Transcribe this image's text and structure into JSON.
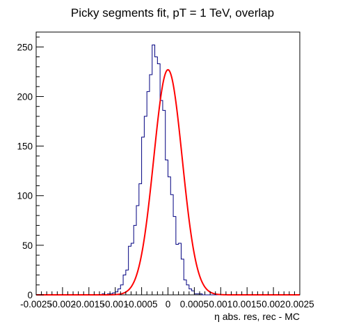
{
  "chart_data": {
    "type": "histogram",
    "title": "Picky segments fit, pT = 1 TeV, overlap",
    "xlabel": "η abs. res, rec - MC",
    "ylabel": "",
    "xlim": [
      -0.0025,
      0.0025
    ],
    "ylim": [
      0,
      265
    ],
    "x_ticks": [
      -0.0025,
      -0.002,
      -0.0015,
      -0.001,
      -0.0005,
      0,
      0.0005,
      0.001,
      0.0015,
      0.002,
      0.0025
    ],
    "x_tick_labels": [
      "-0.0025",
      "-0.002",
      "-0.0015",
      "-0.001",
      "-0.0005",
      "0",
      "0.0005",
      "0.001",
      "0.0015",
      "0.002",
      "0.0025"
    ],
    "y_ticks": [
      0,
      50,
      100,
      150,
      200,
      250
    ],
    "y_tick_labels": [
      "0",
      "50",
      "100",
      "150",
      "200",
      "250"
    ],
    "bin_width": 5e-05,
    "bin_start": -0.0025,
    "series": [
      {
        "kind": "histogram",
        "color": "#000080",
        "values": [
          0,
          0,
          0,
          0,
          0,
          0,
          0,
          0,
          0,
          0,
          0,
          0,
          0,
          0,
          0,
          0,
          0,
          0,
          0,
          0,
          0,
          0,
          0,
          0,
          0,
          1,
          0,
          1,
          1,
          2,
          3,
          6,
          10,
          20,
          25,
          49,
          52,
          70,
          90,
          112,
          159,
          180,
          205,
          222,
          252,
          240,
          233,
          196,
          186,
          136,
          119,
          101,
          79,
          51,
          52,
          36,
          15,
          10,
          6,
          4,
          1,
          1,
          1,
          0,
          0,
          0,
          0,
          0,
          0,
          0,
          0,
          0,
          0,
          0,
          0,
          0,
          0,
          0,
          0,
          0,
          0,
          0,
          0,
          0,
          0,
          0,
          0,
          0,
          0,
          0,
          0,
          0,
          0,
          0,
          0,
          0,
          0,
          0,
          0,
          0
        ]
      },
      {
        "kind": "gaussian-fit",
        "color": "#ff0000",
        "amplitude": 227,
        "mean": 0.0,
        "sigma": 0.00027
      }
    ],
    "grid": false,
    "legend": "none"
  }
}
